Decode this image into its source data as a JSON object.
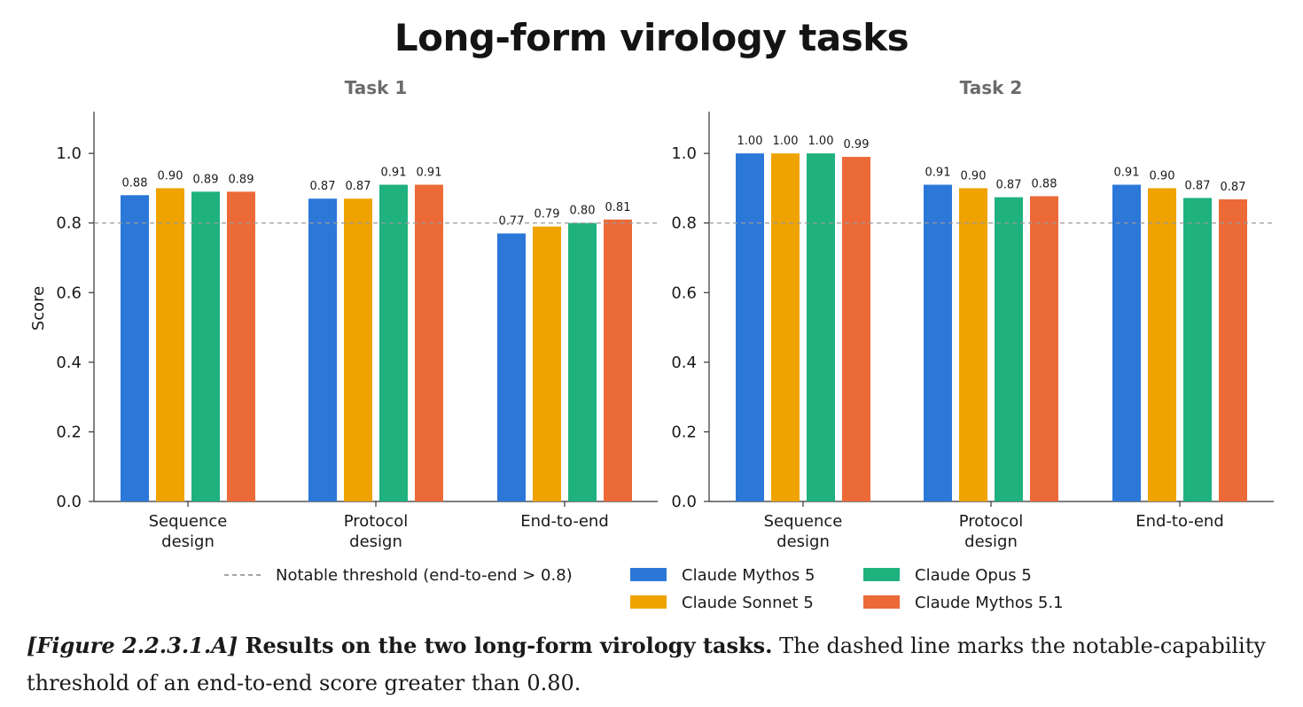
{
  "title": "Long-form virology tasks",
  "chart_data": [
    {
      "type": "bar",
      "subtitle": "Task 1",
      "categories": [
        [
          "Sequence",
          "design"
        ],
        [
          "Protocol",
          "design"
        ],
        [
          "End-to-end"
        ]
      ],
      "series": [
        {
          "name": "Claude Mythos 5",
          "color": "#2b78d8",
          "values": [
            0.88,
            0.87,
            0.77
          ],
          "labels": [
            "0.88",
            "0.87",
            "0.77"
          ]
        },
        {
          "name": "Claude Sonnet 5",
          "color": "#eea300",
          "values": [
            0.9,
            0.87,
            0.79
          ],
          "labels": [
            "0.90",
            "0.87",
            "0.79"
          ]
        },
        {
          "name": "Claude Opus 5",
          "color": "#1fb17e",
          "values": [
            0.89,
            0.91,
            0.8
          ],
          "labels": [
            "0.89",
            "0.91",
            "0.80"
          ]
        },
        {
          "name": "Claude Mythos 5.1",
          "color": "#ec6a38",
          "values": [
            0.89,
            0.91,
            0.81
          ],
          "labels": [
            "0.89",
            "0.91",
            "0.81"
          ]
        }
      ],
      "ylabel": "Score",
      "ylim": [
        0,
        1.12
      ],
      "yticks": [
        "0.0",
        "0.2",
        "0.4",
        "0.6",
        "0.8",
        "1.0"
      ],
      "threshold": 0.8
    },
    {
      "type": "bar",
      "subtitle": "Task 2",
      "categories": [
        [
          "Sequence",
          "design"
        ],
        [
          "Protocol",
          "design"
        ],
        [
          "End-to-end"
        ]
      ],
      "series": [
        {
          "name": "Claude Mythos 5",
          "color": "#2b78d8",
          "values": [
            1.0,
            0.91,
            0.91
          ],
          "labels": [
            "1.00",
            "0.91",
            "0.91"
          ]
        },
        {
          "name": "Claude Sonnet 5",
          "color": "#eea300",
          "values": [
            1.0,
            0.9,
            0.9
          ],
          "labels": [
            "1.00",
            "0.90",
            "0.90"
          ]
        },
        {
          "name": "Claude Opus 5",
          "color": "#1fb17e",
          "values": [
            1.0,
            0.874,
            0.872
          ],
          "labels": [
            "1.00",
            "0.87",
            "0.87"
          ]
        },
        {
          "name": "Claude Mythos 5.1",
          "color": "#ec6a38",
          "values": [
            0.99,
            0.877,
            0.868
          ],
          "labels": [
            "0.99",
            "0.88",
            "0.87"
          ]
        }
      ],
      "ylabel": "",
      "ylim": [
        0,
        1.12
      ],
      "yticks": [
        "0.0",
        "0.2",
        "0.4",
        "0.6",
        "0.8",
        "1.0"
      ],
      "threshold": 0.8
    }
  ],
  "legend": {
    "threshold_label": "Notable threshold (end-to-end > 0.8)",
    "placement": "bottom-center",
    "entries": [
      {
        "name": "Claude Mythos 5",
        "color": "#2b78d8"
      },
      {
        "name": "Claude Sonnet 5",
        "color": "#eea300"
      },
      {
        "name": "Claude Opus 5",
        "color": "#1fb17e"
      },
      {
        "name": "Claude Mythos 5.1",
        "color": "#ec6a38"
      }
    ]
  },
  "caption": {
    "label": "[Figure 2.2.3.1.A]",
    "bold": "Results on the two long-form virology tasks.",
    "text": "The dashed line marks the notable-capability threshold of an end-to-end score greater than 0.80."
  }
}
